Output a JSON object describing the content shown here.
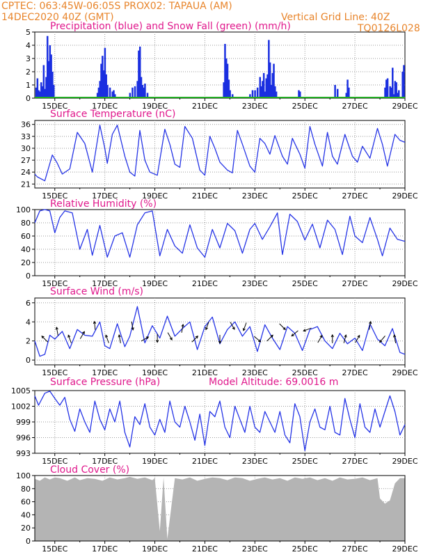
{
  "header": {
    "line1": "CPTEC:   063:45W-06:05S   PROX02: TAPAUA (AM)",
    "line2": "14DEC2020 40Z (GMT)",
    "grid_note": "Vertical Grid Line: 40Z",
    "code": "TQ0126L028"
  },
  "colors": {
    "header": "#e8842a",
    "titles": "#e0188c",
    "precip": "#1a2fe0",
    "snow": "#22aa22",
    "line": "#2433e6",
    "cloud": "#b4b4b4",
    "arrow": "#000000"
  },
  "x_dates": [
    "15DEC",
    "17DEC",
    "19DEC",
    "21DEC",
    "23DEC",
    "25DEC",
    "27DEC",
    "29DEC"
  ],
  "chart_data": [
    {
      "id": "precip",
      "type": "bar",
      "title": "Precipitation (blue) and Snow Fall (green) (mm/h)",
      "ylim": [
        0,
        5
      ],
      "yticks": [
        0,
        1,
        2,
        3,
        4,
        5
      ],
      "x_range_days": [
        14.2,
        29.0
      ],
      "series": [
        {
          "name": "precipitation",
          "x": [
            14.25,
            14.3,
            14.35,
            14.4,
            14.45,
            14.5,
            14.55,
            14.6,
            14.65,
            14.7,
            14.75,
            14.8,
            14.85,
            14.9,
            14.95,
            16.7,
            16.75,
            16.8,
            16.85,
            16.9,
            16.95,
            17.0,
            17.05,
            17.1,
            17.2,
            17.3,
            17.35,
            17.4,
            18.0,
            18.1,
            18.2,
            18.3,
            18.35,
            18.4,
            18.45,
            18.5,
            18.55,
            18.6,
            18.7,
            21.75,
            21.8,
            21.85,
            21.9,
            21.95,
            22.0,
            22.1,
            22.8,
            22.9,
            23.0,
            23.1,
            23.2,
            23.25,
            23.3,
            23.35,
            23.4,
            23.45,
            23.5,
            23.55,
            23.6,
            23.65,
            23.7,
            23.75,
            23.8,
            23.85,
            24.75,
            24.8,
            26.2,
            26.3,
            26.65,
            26.7,
            26.75,
            28.2,
            28.25,
            28.3,
            28.4,
            28.45,
            28.5,
            28.55,
            28.6,
            28.65,
            28.7,
            28.75,
            28.9,
            28.95
          ],
          "values": [
            0.8,
            1.5,
            0.6,
            0.5,
            1.2,
            0.9,
            2.5,
            0.7,
            1.6,
            4.7,
            2.8,
            4.0,
            3.3,
            2.0,
            1.0,
            0.4,
            0.8,
            1.3,
            2.6,
            3.2,
            2.1,
            3.8,
            1.8,
            1.0,
            0.8,
            0.5,
            0.6,
            0.3,
            0.4,
            0.8,
            0.9,
            1.3,
            3.6,
            3.9,
            1.6,
            1.0,
            0.8,
            1.1,
            0.4,
            1.2,
            4.1,
            3.0,
            2.6,
            1.4,
            0.6,
            0.3,
            0.3,
            0.6,
            0.6,
            0.8,
            1.6,
            0.9,
            1.3,
            1.9,
            0.5,
            1.5,
            1.8,
            4.4,
            2.7,
            1.0,
            1.9,
            2.6,
            0.9,
            0.5,
            0.6,
            0.5,
            1.0,
            0.7,
            0.4,
            1.4,
            0.8,
            0.8,
            1.4,
            1.5,
            0.9,
            0.8,
            2.3,
            0.3,
            1.3,
            1.2,
            0.4,
            0.6,
            2.0,
            2.5
          ]
        },
        {
          "name": "snow fall",
          "x": [
            14.2,
            29.0
          ],
          "values": [
            0,
            0
          ]
        }
      ]
    },
    {
      "id": "temperature",
      "type": "line",
      "title": "Surface Temperature (nC)",
      "ylim": [
        20,
        37
      ],
      "yticks": [
        21,
        24,
        27,
        30,
        33,
        36
      ],
      "x_range_days": [
        14.2,
        29.0
      ],
      "x": [
        14.2,
        14.3,
        14.6,
        14.9,
        15.1,
        15.3,
        15.6,
        15.9,
        16.2,
        16.5,
        16.8,
        17.0,
        17.1,
        17.3,
        17.5,
        17.8,
        18.0,
        18.2,
        18.4,
        18.6,
        18.8,
        19.1,
        19.4,
        19.6,
        19.8,
        20.0,
        20.2,
        20.5,
        20.8,
        21.0,
        21.2,
        21.4,
        21.6,
        21.9,
        22.1,
        22.3,
        22.5,
        22.8,
        23.0,
        23.2,
        23.4,
        23.6,
        23.8,
        24.1,
        24.3,
        24.5,
        24.8,
        25.0,
        25.2,
        25.4,
        25.7,
        25.9,
        26.1,
        26.3,
        26.6,
        26.9,
        27.1,
        27.3,
        27.6,
        27.9,
        28.1,
        28.3,
        28.6,
        28.8,
        29.0
      ],
      "values": [
        23.5,
        22.8,
        21.8,
        28.3,
        26.2,
        23.5,
        24.8,
        34.0,
        31.2,
        24.0,
        35.8,
        30.0,
        26.2,
        33.5,
        35.8,
        28.0,
        24.0,
        23.0,
        34.5,
        27.0,
        24.0,
        23.2,
        34.8,
        31.0,
        26.0,
        25.2,
        35.5,
        32.5,
        24.5,
        23.2,
        33.0,
        30.0,
        26.5,
        24.5,
        23.8,
        34.5,
        31.0,
        25.5,
        24.0,
        32.5,
        31.2,
        28.5,
        33.2,
        28.0,
        26.0,
        32.5,
        28.5,
        25.0,
        35.5,
        31.0,
        25.5,
        34.0,
        28.0,
        26.0,
        33.5,
        28.0,
        26.5,
        30.5,
        27.5,
        35.0,
        31.0,
        25.5,
        33.5,
        32.0,
        31.5
      ]
    },
    {
      "id": "humidity",
      "type": "line",
      "title": "Relative Humidity (%)",
      "ylim": [
        0,
        100
      ],
      "yticks": [
        0,
        20,
        40,
        60,
        80,
        100
      ],
      "x_range_days": [
        14.2,
        29.0
      ],
      "x": [
        14.2,
        14.4,
        14.6,
        14.8,
        15.0,
        15.2,
        15.4,
        15.7,
        16.0,
        16.3,
        16.5,
        16.8,
        17.1,
        17.4,
        17.7,
        18.0,
        18.3,
        18.6,
        18.9,
        19.2,
        19.5,
        19.8,
        20.1,
        20.4,
        20.7,
        21.0,
        21.3,
        21.6,
        21.9,
        22.2,
        22.5,
        22.8,
        23.0,
        23.3,
        23.6,
        23.9,
        24.1,
        24.4,
        24.7,
        25.0,
        25.3,
        25.6,
        25.9,
        26.2,
        26.5,
        26.8,
        27.0,
        27.3,
        27.6,
        27.9,
        28.1,
        28.4,
        28.7,
        29.0
      ],
      "values": [
        80,
        98,
        100,
        98,
        65,
        88,
        98,
        95,
        40,
        70,
        31,
        76,
        28,
        60,
        65,
        28,
        77,
        95,
        98,
        30,
        70,
        45,
        34,
        77,
        42,
        28,
        70,
        42,
        79,
        68,
        34,
        70,
        79,
        55,
        74,
        95,
        32,
        93,
        82,
        54,
        78,
        42,
        84,
        70,
        32,
        90,
        60,
        50,
        88,
        55,
        30,
        72,
        55,
        52
      ]
    },
    {
      "id": "wind",
      "type": "line",
      "title": "Surface Wind (m/s)",
      "ylim": [
        -0.5,
        6.5
      ],
      "yticks": [
        0,
        2,
        4,
        6
      ],
      "x_range_days": [
        14.2,
        29.0
      ],
      "x": [
        14.2,
        14.4,
        14.6,
        14.8,
        15.0,
        15.3,
        15.6,
        15.9,
        16.2,
        16.5,
        16.8,
        17.0,
        17.2,
        17.5,
        17.8,
        18.0,
        18.3,
        18.6,
        18.9,
        19.2,
        19.5,
        19.8,
        20.1,
        20.4,
        20.7,
        21.0,
        21.3,
        21.6,
        21.9,
        22.2,
        22.5,
        22.8,
        23.1,
        23.4,
        23.7,
        24.0,
        24.3,
        24.6,
        24.9,
        25.2,
        25.5,
        25.8,
        26.1,
        26.4,
        26.7,
        27.0,
        27.3,
        27.6,
        27.9,
        28.2,
        28.5,
        28.8,
        29.0
      ],
      "values": [
        2.0,
        0.4,
        0.6,
        2.6,
        2.2,
        3.0,
        1.2,
        3.2,
        2.6,
        2.5,
        4.0,
        1.5,
        1.2,
        3.8,
        1.4,
        2.5,
        5.6,
        1.8,
        3.6,
        2.3,
        4.6,
        2.5,
        3.3,
        4.0,
        1.1,
        3.5,
        4.5,
        1.7,
        3.2,
        4.0,
        2.5,
        3.5,
        0.9,
        3.7,
        2.3,
        1.1,
        3.5,
        2.8,
        1.0,
        3.2,
        3.5,
        2.0,
        1.2,
        2.8,
        1.7,
        2.3,
        1.0,
        3.8,
        2.2,
        1.5,
        3.3,
        0.8,
        0.6
      ],
      "arrow_x": [
        14.6,
        15.1,
        15.6,
        16.1,
        16.6,
        17.1,
        17.6,
        18.1,
        18.6,
        19.1,
        19.6,
        20.1,
        20.6,
        21.1,
        21.6,
        22.1,
        22.6,
        23.1,
        23.6,
        24.1,
        24.6,
        25.1,
        25.6,
        26.1,
        26.6,
        27.1,
        27.6,
        28.1,
        28.6
      ],
      "arrow_dir_deg": [
        135,
        100,
        110,
        60,
        95,
        110,
        100,
        280,
        30,
        270,
        300,
        80,
        45,
        250,
        270,
        300,
        250,
        320,
        45,
        315,
        220,
        200,
        60,
        90,
        75,
        60,
        80,
        230,
        100
      ]
    },
    {
      "id": "pressure",
      "type": "line",
      "title": "Surface Pressure (hPa)",
      "annotation": "Model Altitude: 69.0016 m",
      "ylim": [
        993,
        1005
      ],
      "yticks": [
        993,
        996,
        999,
        1002,
        1005
      ],
      "x_range_days": [
        14.2,
        29.0
      ],
      "x": [
        14.2,
        14.35,
        14.6,
        14.8,
        15.0,
        15.2,
        15.4,
        15.6,
        15.8,
        16.0,
        16.2,
        16.4,
        16.6,
        16.8,
        17.0,
        17.2,
        17.4,
        17.6,
        17.8,
        18.0,
        18.2,
        18.4,
        18.6,
        18.8,
        19.0,
        19.2,
        19.4,
        19.6,
        19.8,
        20.0,
        20.2,
        20.4,
        20.6,
        20.8,
        21.0,
        21.2,
        21.4,
        21.6,
        21.8,
        22.0,
        22.2,
        22.4,
        22.6,
        22.8,
        23.0,
        23.2,
        23.4,
        23.6,
        23.8,
        24.0,
        24.2,
        24.4,
        24.6,
        24.8,
        25.0,
        25.2,
        25.4,
        25.6,
        25.8,
        26.0,
        26.2,
        26.4,
        26.6,
        26.8,
        27.0,
        27.2,
        27.4,
        27.6,
        27.8,
        28.0,
        28.2,
        28.4,
        28.6,
        28.8,
        29.0
      ],
      "values": [
        1004.0,
        1002.2,
        1004.5,
        1004.9,
        1003.5,
        1002.2,
        1003.7,
        999.5,
        997.2,
        1001.5,
        999.0,
        997.0,
        1003.0,
        999.5,
        997.5,
        1001.5,
        999.0,
        1003.0,
        997.0,
        994.2,
        1000.0,
        998.5,
        1002.5,
        998.0,
        996.5,
        999.5,
        997.0,
        1003.0,
        999.0,
        998.0,
        1002.0,
        999.0,
        995.5,
        1000.5,
        994.5,
        1001.0,
        1000.0,
        1003.0,
        998.0,
        996.0,
        1002.0,
        999.5,
        997.0,
        1002.0,
        998.0,
        997.0,
        1001.0,
        999.0,
        997.0,
        1001.0,
        996.5,
        995.0,
        1002.5,
        1000.0,
        993.5,
        999.0,
        1001.5,
        998.0,
        997.5,
        1002.0,
        997.0,
        996.5,
        1003.5,
        999.5,
        996.0,
        1002.5,
        998.0,
        997.0,
        1001.5,
        998.0,
        1001.0,
        1004.0,
        1001.0,
        996.5,
        998.5
      ]
    },
    {
      "id": "cloud",
      "type": "area",
      "title": "Cloud Cover (%)",
      "ylim": [
        0,
        100
      ],
      "yticks": [
        0,
        20,
        40,
        60,
        80,
        100
      ],
      "x_range_days": [
        14.2,
        29.0
      ],
      "x": [
        14.2,
        14.4,
        14.6,
        14.8,
        15.0,
        15.2,
        15.5,
        15.8,
        16.0,
        16.3,
        16.6,
        16.9,
        17.2,
        17.5,
        17.8,
        18.0,
        18.3,
        18.6,
        18.9,
        19.0,
        19.2,
        19.35,
        19.5,
        19.8,
        20.1,
        20.4,
        20.7,
        21.0,
        21.3,
        21.6,
        21.9,
        22.2,
        22.5,
        22.8,
        23.1,
        23.4,
        23.7,
        24.0,
        24.3,
        24.6,
        24.9,
        25.2,
        25.5,
        25.8,
        26.1,
        26.4,
        26.7,
        27.0,
        27.3,
        27.6,
        27.9,
        28.0,
        28.2,
        28.4,
        28.6,
        28.8,
        29.0
      ],
      "values": [
        95,
        92,
        97,
        94,
        97,
        96,
        92,
        97,
        93,
        96,
        95,
        92,
        97,
        94,
        96,
        98,
        95,
        97,
        93,
        96,
        15,
        97,
        3,
        96,
        94,
        97,
        92,
        95,
        97,
        96,
        93,
        97,
        96,
        92,
        95,
        97,
        94,
        96,
        92,
        97,
        95,
        97,
        93,
        96,
        92,
        97,
        94,
        95,
        97,
        93,
        96,
        65,
        57,
        62,
        88,
        96,
        96
      ]
    }
  ]
}
